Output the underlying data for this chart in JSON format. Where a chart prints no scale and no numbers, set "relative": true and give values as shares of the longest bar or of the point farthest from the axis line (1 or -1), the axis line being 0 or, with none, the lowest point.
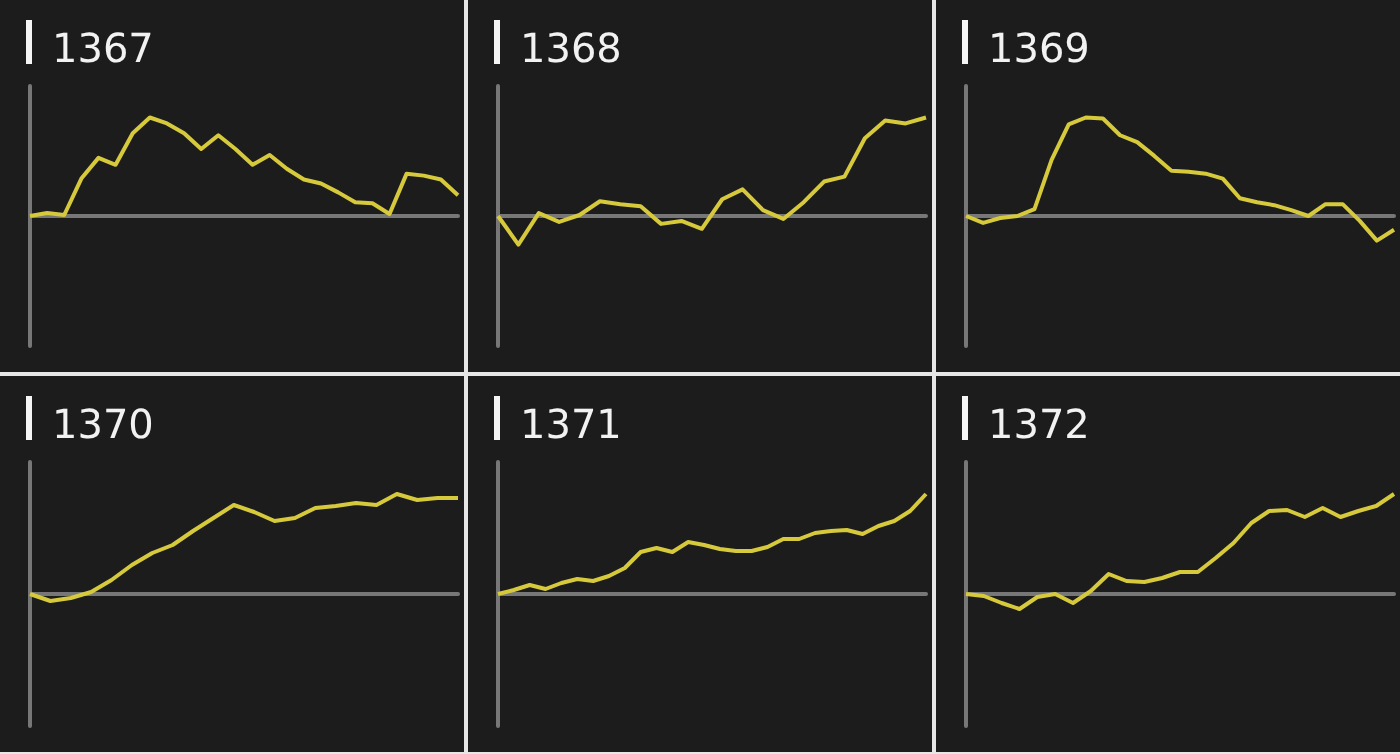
{
  "chart_data": [
    {
      "type": "line",
      "title": "1367",
      "relative": true,
      "marker": "none",
      "categories": [
        null,
        null,
        null,
        null,
        null,
        null,
        null,
        null,
        null,
        null,
        null,
        null,
        null,
        null,
        null,
        null,
        null,
        null,
        null,
        null,
        null,
        null,
        null,
        null,
        null,
        null
      ],
      "series": [
        {
          "color": "#d6c93c",
          "values": [
            0,
            0.03,
            0.01,
            0.38,
            0.59,
            0.52,
            0.84,
            1,
            0.94,
            0.84,
            0.68,
            0.82,
            0.68,
            0.52,
            0.62,
            0.48,
            0.37,
            0.33,
            0.24,
            0.14,
            0.13,
            0.02,
            0.43,
            0.41,
            0.37,
            0.21
          ]
        }
      ]
    },
    {
      "type": "line",
      "title": "1368",
      "relative": true,
      "marker": "none",
      "categories": [
        null,
        null,
        null,
        null,
        null,
        null,
        null,
        null,
        null,
        null,
        null,
        null,
        null,
        null,
        null,
        null,
        null,
        null,
        null,
        null,
        null,
        null
      ],
      "series": [
        {
          "color": "#d6c93c",
          "values": [
            0,
            -0.29,
            0.03,
            -0.06,
            0.01,
            0.15,
            0.12,
            0.1,
            -0.08,
            -0.05,
            -0.13,
            0.17,
            0.27,
            0.06,
            -0.03,
            0.14,
            0.35,
            0.4,
            0.79,
            0.97,
            0.94,
            1
          ]
        }
      ]
    },
    {
      "type": "line",
      "title": "1369",
      "relative": true,
      "marker": "none",
      "categories": [
        null,
        null,
        null,
        null,
        null,
        null,
        null,
        null,
        null,
        null,
        null,
        null,
        null,
        null,
        null,
        null,
        null,
        null,
        null,
        null,
        null,
        null,
        null,
        null,
        null,
        null
      ],
      "series": [
        {
          "color": "#d6c93c",
          "values": [
            0,
            -0.07,
            -0.02,
            0,
            0.07,
            0.57,
            0.93,
            1,
            0.99,
            0.82,
            0.75,
            0.61,
            0.46,
            0.45,
            0.43,
            0.38,
            0.18,
            0.14,
            0.11,
            0.06,
            0,
            0.12,
            0.12,
            -0.05,
            -0.25,
            -0.14
          ]
        }
      ]
    },
    {
      "type": "line",
      "title": "1370",
      "relative": true,
      "marker": "none",
      "categories": [
        null,
        null,
        null,
        null,
        null,
        null,
        null,
        null,
        null,
        null,
        null,
        null,
        null,
        null,
        null,
        null,
        null,
        null,
        null,
        null,
        null,
        null
      ],
      "series": [
        {
          "color": "#d6c93c",
          "values": [
            0,
            -0.07,
            -0.04,
            0.02,
            0.14,
            0.29,
            0.41,
            0.49,
            0.63,
            0.76,
            0.89,
            0.82,
            0.73,
            0.76,
            0.86,
            0.88,
            0.91,
            0.89,
            1,
            0.94,
            0.96,
            0.96
          ]
        }
      ]
    },
    {
      "type": "line",
      "title": "1371",
      "relative": true,
      "marker": "none",
      "categories": [
        null,
        null,
        null,
        null,
        null,
        null,
        null,
        null,
        null,
        null,
        null,
        null,
        null,
        null,
        null,
        null,
        null,
        null,
        null,
        null,
        null,
        null,
        null,
        null,
        null,
        null,
        null,
        null
      ],
      "series": [
        {
          "color": "#d6c93c",
          "values": [
            0,
            0.04,
            0.09,
            0.05,
            0.11,
            0.15,
            0.13,
            0.18,
            0.26,
            0.42,
            0.46,
            0.42,
            0.52,
            0.49,
            0.45,
            0.43,
            0.43,
            0.47,
            0.55,
            0.55,
            0.61,
            0.63,
            0.64,
            0.6,
            0.68,
            0.73,
            0.83,
            1
          ]
        }
      ]
    },
    {
      "type": "line",
      "title": "1372",
      "relative": true,
      "marker": "none",
      "categories": [
        null,
        null,
        null,
        null,
        null,
        null,
        null,
        null,
        null,
        null,
        null,
        null,
        null,
        null,
        null,
        null,
        null,
        null,
        null,
        null,
        null,
        null,
        null,
        null,
        null
      ],
      "series": [
        {
          "color": "#d6c93c",
          "values": [
            0,
            -0.02,
            -0.09,
            -0.15,
            -0.03,
            0,
            -0.09,
            0.03,
            0.2,
            0.13,
            0.12,
            0.16,
            0.22,
            0.22,
            0.36,
            0.51,
            0.71,
            0.83,
            0.84,
            0.77,
            0.86,
            0.77,
            0.83,
            0.88,
            1
          ]
        }
      ]
    }
  ]
}
